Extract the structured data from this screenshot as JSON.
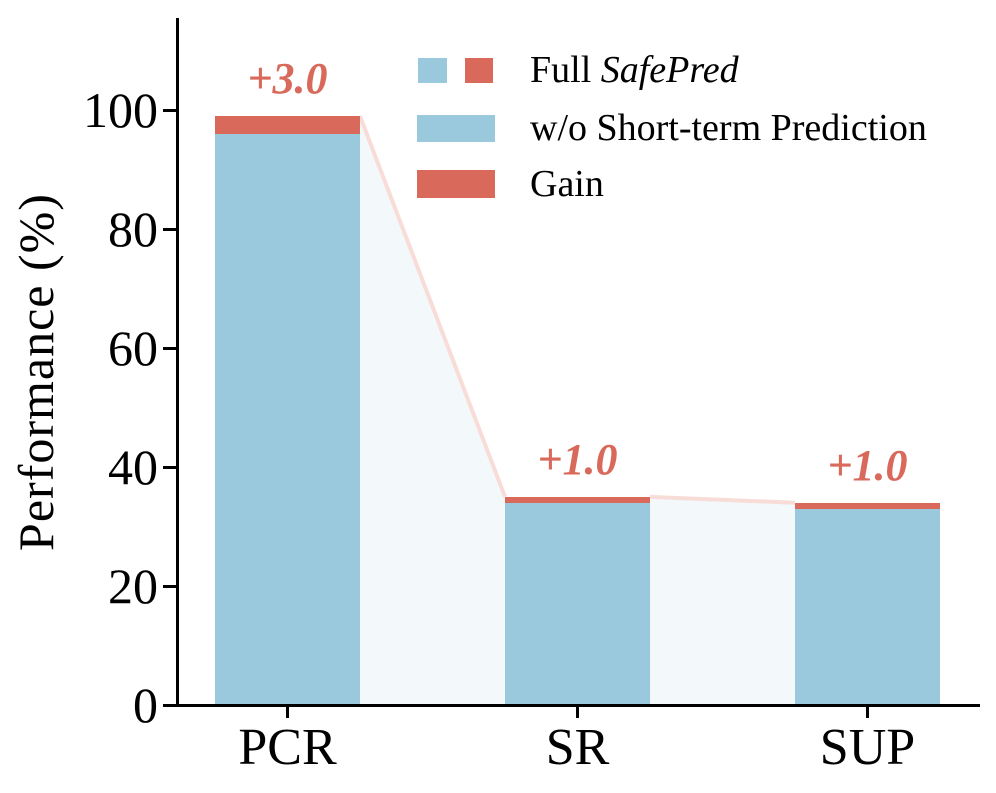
{
  "chart_data": {
    "type": "bar",
    "title": "",
    "xlabel": "",
    "ylabel": "Performance (%)",
    "categories": [
      "PCR",
      "SR",
      "SUP"
    ],
    "series": [
      {
        "name": "w/o Short-term Prediction",
        "values": [
          96.0,
          34.0,
          33.0
        ]
      },
      {
        "name": "Gain",
        "values": [
          3.0,
          1.0,
          1.0
        ]
      }
    ],
    "totals": [
      99.0,
      35.0,
      34.0
    ],
    "bar_annotations": [
      "+3.0",
      "+1.0",
      "+1.0"
    ],
    "ytick_labels": [
      "0",
      "20",
      "40",
      "60",
      "80",
      "100"
    ],
    "ytick_values": [
      0,
      20,
      40,
      60,
      80,
      100
    ],
    "ylim": [
      0,
      115.5
    ],
    "grid": false,
    "legend_position": "upper-center-inside-frameless",
    "legend": [
      {
        "prefix": "Full ",
        "italic": "SafePred",
        "swatch": "split-blue-red"
      },
      {
        "label": "w/o Short-term Prediction",
        "swatch": "blue"
      },
      {
        "label": "Gain",
        "swatch": "red"
      }
    ],
    "colors": {
      "base_bar": "#9ac8dd",
      "gain_bar": "#d8695b",
      "annotation": "#d8695b",
      "connector_line": "#f8dcd7",
      "connector_area": "#f3f8fa",
      "axis": "#000000",
      "background": "#ffffff"
    }
  }
}
